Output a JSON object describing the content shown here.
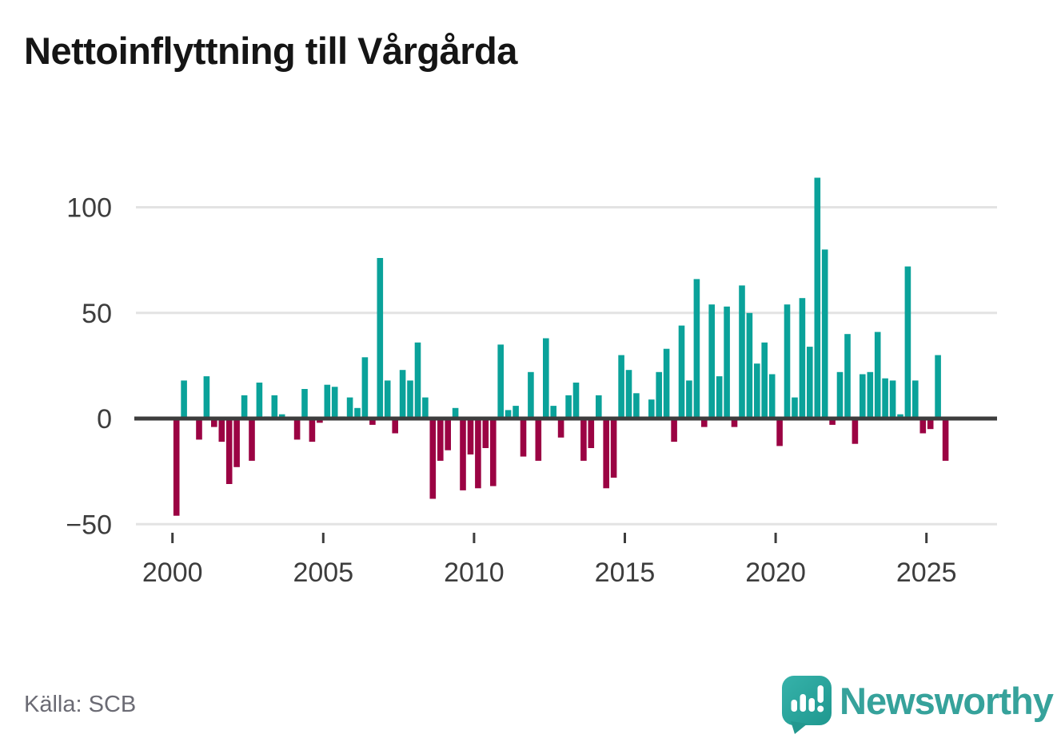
{
  "title": "Nettoinflyttning till Vårgårda",
  "source": "Källa: SCB",
  "brand": {
    "name": "Newsworthy",
    "color": "#36a29b"
  },
  "chart_data": {
    "type": "bar",
    "title": "Nettoinflyttning till Vårgårda",
    "frequency": "quarterly",
    "start": "2000-Q1",
    "end": "2025-Q3",
    "x_ticks": [
      2000,
      2005,
      2010,
      2015,
      2020,
      2025
    ],
    "x_tick_labels": [
      "2000",
      "2005",
      "2010",
      "2015",
      "2020",
      "2025"
    ],
    "y_ticks": [
      100,
      50,
      0,
      -50
    ],
    "y_tick_labels": [
      "100",
      "50",
      "0",
      "−50"
    ],
    "ylim": [
      -52,
      118
    ],
    "grid": true,
    "legend": false,
    "colors": {
      "positive": "#0aa29a",
      "negative": "#9b0343",
      "baseline": "#3d3d3d",
      "gridline": "#e3e3e3",
      "axis_text": "#3d3d3d"
    },
    "values": [
      -46,
      18,
      0,
      -10,
      20,
      -4,
      -11,
      -31,
      -23,
      11,
      -20,
      17,
      1,
      11,
      2,
      0,
      -10,
      14,
      -11,
      -2,
      16,
      15,
      1,
      10,
      5,
      29,
      -3,
      76,
      18,
      -7,
      23,
      18,
      36,
      10,
      -38,
      -20,
      -15,
      5,
      -34,
      -17,
      -33,
      -14,
      -32,
      35,
      4,
      6,
      -18,
      22,
      -20,
      38,
      6,
      -9,
      11,
      17,
      -20,
      -14,
      11,
      -33,
      -28,
      30,
      23,
      12,
      0,
      9,
      22,
      33,
      -11,
      44,
      18,
      66,
      -4,
      54,
      20,
      53,
      -4,
      63,
      50,
      26,
      36,
      21,
      -13,
      54,
      10,
      57,
      34,
      114,
      80,
      -3,
      22,
      40,
      -12,
      21,
      22,
      41,
      19,
      18,
      2,
      72,
      18,
      -7,
      -5,
      30,
      -20
    ]
  }
}
